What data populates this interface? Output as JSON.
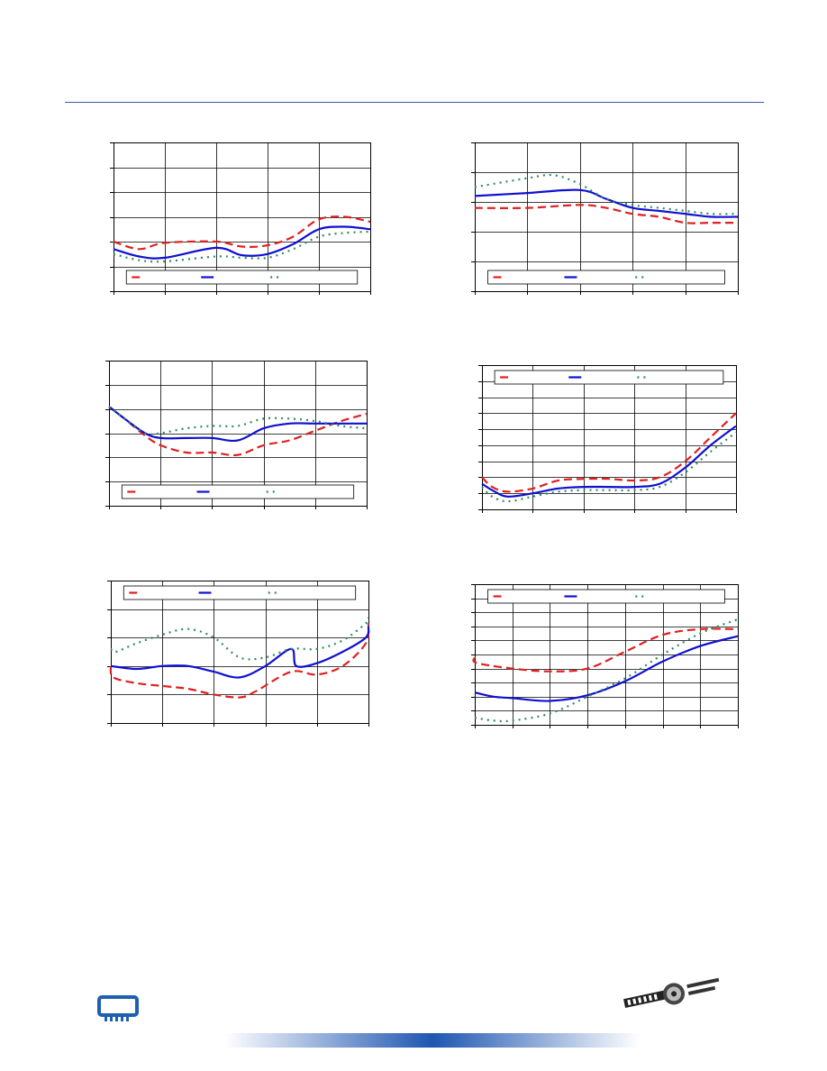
{
  "theme": {
    "rule_color": "#3a5aa8",
    "logo_color": "#1f5fb0",
    "gradient_colors": [
      "#ffffff",
      "#1e56b0",
      "#ffffff"
    ]
  },
  "legend_lines": {
    "red": {
      "color": "#e02020",
      "dash": "dashed"
    },
    "blue": {
      "color": "#1010d0",
      "dash": "solid"
    },
    "green": {
      "color": "#2e8b57",
      "dash": "dotted"
    }
  },
  "chart_data": [
    {
      "type": "line",
      "ylim": [
        0,
        6
      ],
      "xlim": [
        0,
        5
      ],
      "grid": true,
      "legend": "bottom",
      "series": [
        {
          "key": "red",
          "values": [
            [
              0,
              2.0
            ],
            [
              0.5,
              1.7
            ],
            [
              1,
              1.95
            ],
            [
              2,
              2.0
            ],
            [
              2.5,
              1.8
            ],
            [
              3,
              1.85
            ],
            [
              3.5,
              2.2
            ],
            [
              4,
              2.9
            ],
            [
              4.5,
              3.0
            ],
            [
              5,
              2.8
            ]
          ]
        },
        {
          "key": "blue",
          "values": [
            [
              0,
              1.7
            ],
            [
              0.5,
              1.4
            ],
            [
              1,
              1.35
            ],
            [
              2,
              1.75
            ],
            [
              2.5,
              1.45
            ],
            [
              3,
              1.5
            ],
            [
              3.5,
              1.9
            ],
            [
              4,
              2.5
            ],
            [
              4.5,
              2.6
            ],
            [
              5,
              2.5
            ]
          ]
        },
        {
          "key": "green",
          "values": [
            [
              0,
              1.5
            ],
            [
              0.5,
              1.25
            ],
            [
              1,
              1.2
            ],
            [
              2,
              1.4
            ],
            [
              2.5,
              1.35
            ],
            [
              3,
              1.35
            ],
            [
              3.5,
              1.7
            ],
            [
              4,
              2.2
            ],
            [
              4.5,
              2.35
            ],
            [
              5,
              2.4
            ]
          ]
        }
      ]
    },
    {
      "type": "line",
      "ylim": [
        0,
        5
      ],
      "xlim": [
        0,
        5
      ],
      "grid": true,
      "legend": "bottom",
      "series": [
        {
          "key": "red",
          "values": [
            [
              0,
              2.8
            ],
            [
              1,
              2.8
            ],
            [
              2,
              2.9
            ],
            [
              2.5,
              2.8
            ],
            [
              3,
              2.6
            ],
            [
              3.5,
              2.5
            ],
            [
              4,
              2.3
            ],
            [
              4.5,
              2.3
            ],
            [
              5,
              2.3
            ]
          ]
        },
        {
          "key": "blue",
          "values": [
            [
              0,
              3.2
            ],
            [
              1,
              3.3
            ],
            [
              2,
              3.4
            ],
            [
              2.5,
              3.1
            ],
            [
              3,
              2.8
            ],
            [
              3.5,
              2.7
            ],
            [
              4,
              2.6
            ],
            [
              4.5,
              2.5
            ],
            [
              5,
              2.5
            ]
          ]
        },
        {
          "key": "green",
          "values": [
            [
              0,
              3.5
            ],
            [
              1,
              3.8
            ],
            [
              1.5,
              3.9
            ],
            [
              2,
              3.6
            ],
            [
              2.5,
              3.1
            ],
            [
              3,
              2.9
            ],
            [
              3.5,
              2.8
            ],
            [
              4,
              2.7
            ],
            [
              4.5,
              2.6
            ],
            [
              5,
              2.6
            ]
          ]
        }
      ]
    },
    {
      "type": "line",
      "ylim": [
        0,
        6
      ],
      "xlim": [
        0,
        5
      ],
      "grid": true,
      "legend": "bottom",
      "series": [
        {
          "key": "red",
          "values": [
            [
              0,
              4.1
            ],
            [
              0.3,
              3.6
            ],
            [
              0.7,
              2.9
            ],
            [
              1,
              2.5
            ],
            [
              1.5,
              2.2
            ],
            [
              2,
              2.2
            ],
            [
              2.5,
              2.1
            ],
            [
              3,
              2.5
            ],
            [
              3.5,
              2.7
            ],
            [
              4,
              3.1
            ],
            [
              4.5,
              3.5
            ],
            [
              5,
              3.8
            ]
          ]
        },
        {
          "key": "blue",
          "values": [
            [
              0,
              4.1
            ],
            [
              0.3,
              3.6
            ],
            [
              0.7,
              3.0
            ],
            [
              1,
              2.8
            ],
            [
              1.5,
              2.8
            ],
            [
              2,
              2.8
            ],
            [
              2.5,
              2.7
            ],
            [
              3,
              3.2
            ],
            [
              3.5,
              3.4
            ],
            [
              4,
              3.4
            ],
            [
              4.5,
              3.4
            ],
            [
              5,
              3.4
            ]
          ]
        },
        {
          "key": "green",
          "values": [
            [
              0,
              4.1
            ],
            [
              0.3,
              3.6
            ],
            [
              0.7,
              3.0
            ],
            [
              1,
              3.0
            ],
            [
              1.5,
              3.2
            ],
            [
              2,
              3.3
            ],
            [
              2.5,
              3.3
            ],
            [
              3,
              3.6
            ],
            [
              3.5,
              3.6
            ],
            [
              4,
              3.5
            ],
            [
              4.5,
              3.3
            ],
            [
              5,
              3.2
            ]
          ]
        }
      ]
    },
    {
      "type": "line",
      "ylim": [
        0,
        9
      ],
      "xlim": [
        0,
        5
      ],
      "grid": true,
      "legend": "top",
      "series": [
        {
          "key": "red",
          "values": [
            [
              0,
              2.0
            ],
            [
              0.2,
              1.4
            ],
            [
              0.5,
              1.1
            ],
            [
              1,
              1.3
            ],
            [
              1.5,
              1.8
            ],
            [
              2,
              1.9
            ],
            [
              2.5,
              1.9
            ],
            [
              3,
              1.8
            ],
            [
              3.5,
              2.0
            ],
            [
              4,
              3.0
            ],
            [
              4.5,
              4.5
            ],
            [
              5,
              6.0
            ]
          ]
        },
        {
          "key": "blue",
          "values": [
            [
              0,
              1.6
            ],
            [
              0.2,
              1.2
            ],
            [
              0.5,
              0.8
            ],
            [
              1,
              1.0
            ],
            [
              1.5,
              1.3
            ],
            [
              2,
              1.4
            ],
            [
              2.5,
              1.4
            ],
            [
              3,
              1.4
            ],
            [
              3.5,
              1.6
            ],
            [
              4,
              2.6
            ],
            [
              4.5,
              4.0
            ],
            [
              5,
              5.2
            ]
          ]
        },
        {
          "key": "green",
          "values": [
            [
              0,
              1.4
            ],
            [
              0.2,
              0.8
            ],
            [
              0.5,
              0.5
            ],
            [
              1,
              0.8
            ],
            [
              1.5,
              1.1
            ],
            [
              2,
              1.2
            ],
            [
              2.5,
              1.2
            ],
            [
              3,
              1.2
            ],
            [
              3.5,
              1.4
            ],
            [
              4,
              2.3
            ],
            [
              4.5,
              3.6
            ],
            [
              5,
              4.8
            ]
          ]
        }
      ]
    },
    {
      "type": "line",
      "ylim": [
        0,
        5
      ],
      "xlim": [
        0,
        5
      ],
      "grid": true,
      "legend": "top",
      "series": [
        {
          "key": "red",
          "values": [
            [
              0,
              2.0
            ],
            [
              0.05,
              1.6
            ],
            [
              0.5,
              1.4
            ],
            [
              1,
              1.3
            ],
            [
              1.5,
              1.2
            ],
            [
              2,
              1.0
            ],
            [
              2.5,
              0.9
            ],
            [
              2.8,
              1.1
            ],
            [
              3.5,
              1.8
            ],
            [
              4,
              1.7
            ],
            [
              4.5,
              2.0
            ],
            [
              4.95,
              2.8
            ],
            [
              5,
              3.5
            ]
          ]
        },
        {
          "key": "blue",
          "values": [
            [
              0,
              2.0
            ],
            [
              0.5,
              1.9
            ],
            [
              1,
              2.0
            ],
            [
              1.5,
              2.0
            ],
            [
              2,
              1.8
            ],
            [
              2.5,
              1.6
            ],
            [
              3,
              2.0
            ],
            [
              3.5,
              2.6
            ],
            [
              3.6,
              2.0
            ],
            [
              4,
              2.1
            ],
            [
              4.5,
              2.5
            ],
            [
              4.95,
              3.0
            ],
            [
              5,
              3.4
            ]
          ]
        },
        {
          "key": "green",
          "values": [
            [
              0,
              2.6
            ],
            [
              0.1,
              2.5
            ],
            [
              0.5,
              2.8
            ],
            [
              1,
              3.1
            ],
            [
              1.5,
              3.3
            ],
            [
              2,
              3.0
            ],
            [
              2.5,
              2.3
            ],
            [
              3,
              2.3
            ],
            [
              3.5,
              2.6
            ],
            [
              4,
              2.6
            ],
            [
              4.5,
              2.9
            ],
            [
              4.95,
              3.5
            ],
            [
              5,
              3.7
            ]
          ]
        }
      ]
    },
    {
      "type": "line",
      "ylim": [
        0,
        10
      ],
      "xlim": [
        0,
        7
      ],
      "grid": true,
      "legend": "top",
      "series": [
        {
          "key": "red",
          "values": [
            [
              0,
              4.8
            ],
            [
              0.05,
              4.4
            ],
            [
              1,
              4.0
            ],
            [
              2,
              3.8
            ],
            [
              3,
              4.0
            ],
            [
              4,
              5.2
            ],
            [
              5,
              6.4
            ],
            [
              6,
              6.8
            ],
            [
              7,
              6.8
            ]
          ]
        },
        {
          "key": "blue",
          "values": [
            [
              0,
              2.3
            ],
            [
              0.5,
              2.0
            ],
            [
              1,
              1.9
            ],
            [
              2,
              1.7
            ],
            [
              3,
              2.1
            ],
            [
              4,
              3.1
            ],
            [
              5,
              4.5
            ],
            [
              6,
              5.6
            ],
            [
              7,
              6.3
            ]
          ]
        },
        {
          "key": "green",
          "values": [
            [
              0,
              0.5
            ],
            [
              0.5,
              0.3
            ],
            [
              1,
              0.3
            ],
            [
              2,
              0.8
            ],
            [
              3,
              2.0
            ],
            [
              4,
              3.3
            ],
            [
              5,
              5.0
            ],
            [
              6,
              6.5
            ],
            [
              7,
              7.5
            ]
          ]
        }
      ]
    }
  ]
}
